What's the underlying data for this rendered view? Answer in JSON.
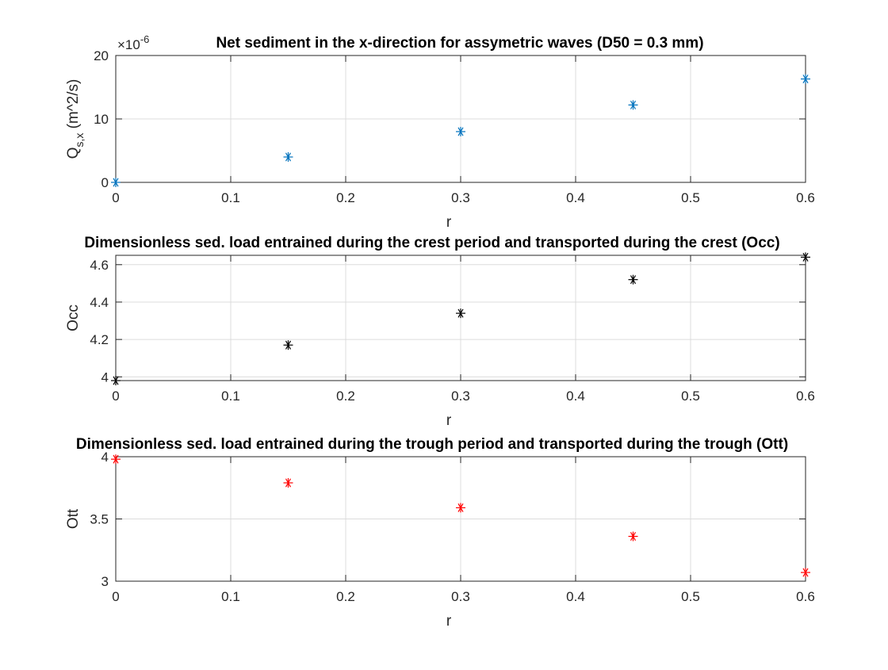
{
  "chart_data": [
    {
      "type": "scatter",
      "title": "Net sediment in the x-direction for assymetric waves (D50 = 0.3 mm)",
      "xlabel": "r",
      "ylabel_main": "Q",
      "ylabel_sub": "s,x",
      "ylabel_rest": " (m^2/s)",
      "exponent_times": "×10",
      "exponent_power": "-6",
      "xlim": [
        0,
        0.6
      ],
      "ylim": [
        0,
        20
      ],
      "x_ticks": [
        0,
        0.1,
        0.2,
        0.3,
        0.4,
        0.5,
        0.6
      ],
      "x_tick_labels": [
        "0",
        "0.1",
        "0.2",
        "0.3",
        "0.4",
        "0.5",
        "0.6"
      ],
      "y_ticks": [
        0,
        10,
        20
      ],
      "y_tick_labels": [
        "0",
        "10",
        "20"
      ],
      "marker": "asterisk",
      "color": "#0072BD",
      "grid": true,
      "x": [
        0,
        0.15,
        0.3,
        0.45,
        0.6
      ],
      "y": [
        0,
        4.0,
        8.0,
        12.2,
        16.3
      ]
    },
    {
      "type": "scatter",
      "title": "Dimensionless sed. load entrained during the crest period and transported during the crest (Occ)",
      "xlabel": "r",
      "ylabel_main": "Occ",
      "ylabel_sub": "",
      "ylabel_rest": "",
      "exponent_times": "",
      "exponent_power": "",
      "xlim": [
        0,
        0.6
      ],
      "ylim": [
        3.98,
        4.65
      ],
      "x_ticks": [
        0,
        0.1,
        0.2,
        0.3,
        0.4,
        0.5,
        0.6
      ],
      "x_tick_labels": [
        "0",
        "0.1",
        "0.2",
        "0.3",
        "0.4",
        "0.5",
        "0.6"
      ],
      "y_ticks": [
        4.0,
        4.2,
        4.4,
        4.6
      ],
      "y_tick_labels": [
        "4",
        "4.2",
        "4.4",
        "4.6"
      ],
      "marker": "asterisk",
      "color": "#000000",
      "grid": true,
      "x": [
        0,
        0.15,
        0.3,
        0.45,
        0.6
      ],
      "y": [
        3.98,
        4.17,
        4.34,
        4.52,
        4.64
      ]
    },
    {
      "type": "scatter",
      "title": "Dimensionless sed. load entrained during the trough period and transported during the trough (Ott)",
      "xlabel": "r",
      "ylabel_main": "Ott",
      "ylabel_sub": "",
      "ylabel_rest": "",
      "exponent_times": "",
      "exponent_power": "",
      "xlim": [
        0,
        0.6
      ],
      "ylim": [
        3.0,
        4.0
      ],
      "x_ticks": [
        0,
        0.1,
        0.2,
        0.3,
        0.4,
        0.5,
        0.6
      ],
      "x_tick_labels": [
        "0",
        "0.1",
        "0.2",
        "0.3",
        "0.4",
        "0.5",
        "0.6"
      ],
      "y_ticks": [
        3.0,
        3.5,
        4.0
      ],
      "y_tick_labels": [
        "3",
        "3.5",
        "4"
      ],
      "marker": "asterisk",
      "color": "#FF0000",
      "grid": true,
      "x": [
        0,
        0.15,
        0.3,
        0.45,
        0.6
      ],
      "y": [
        3.98,
        3.79,
        3.59,
        3.36,
        3.07
      ]
    }
  ]
}
